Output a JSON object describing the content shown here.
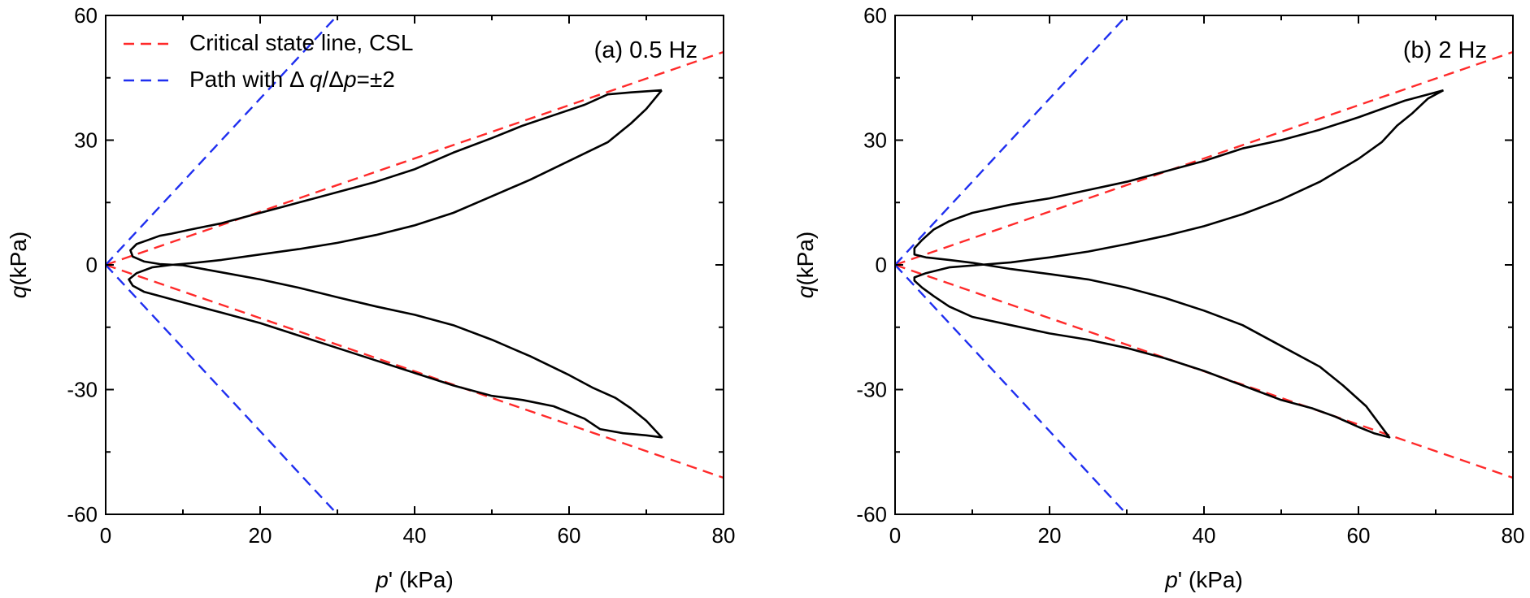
{
  "chart_data": [
    {
      "type": "line",
      "panel_label": "(a) 0.5 Hz",
      "xlabel_italic": "p",
      "xlabel_rest": "' (kPa)",
      "ylabel_italic": "q",
      "ylabel_rest": "(kPa)",
      "xlim": [
        0,
        80
      ],
      "ylim": [
        -60,
        60
      ],
      "xticks": [
        0,
        20,
        40,
        60,
        80
      ],
      "yticks": [
        -60,
        -30,
        0,
        30,
        60
      ],
      "grid": false,
      "legend": {
        "placement": "top-left",
        "entries": [
          {
            "label": "Critical state line, CSL",
            "color": "#ff2a2a"
          },
          {
            "label_parts": [
              "Path with Δ ",
              "q",
              "/Δ",
              "p",
              "=±2"
            ],
            "italic": [
              false,
              true,
              false,
              true,
              false
            ],
            "color": "#1f2ff0"
          }
        ]
      },
      "series": [
        {
          "name": "Critical state line, CSL",
          "style": "dashed",
          "color": "#ff2a2a",
          "x": [
            0,
            80
          ],
          "y": [
            0,
            51.2
          ]
        },
        {
          "name": "Critical state line, CSL",
          "style": "dashed",
          "color": "#ff2a2a",
          "x": [
            0,
            80
          ],
          "y": [
            0,
            -51.2
          ]
        },
        {
          "name": "Path with Δq/Δp=±2",
          "style": "dashed",
          "color": "#1f2ff0",
          "x": [
            0,
            30
          ],
          "y": [
            0,
            60
          ]
        },
        {
          "name": "Path with Δq/Δp=±2",
          "style": "dashed",
          "color": "#1f2ff0",
          "x": [
            0,
            30
          ],
          "y": [
            0,
            -60
          ]
        },
        {
          "name": "stress path",
          "style": "solid",
          "color": "#000000",
          "x": [
            72,
            68,
            65,
            62,
            58,
            54,
            50,
            45,
            40,
            35,
            30,
            25,
            20,
            15,
            11,
            8.5,
            7,
            5.5,
            4,
            3.2,
            3.5,
            5,
            7,
            10,
            15,
            20,
            25,
            30,
            35,
            40,
            45,
            50,
            55,
            60,
            63,
            66,
            68,
            70,
            72,
            70,
            67,
            64,
            62,
            58,
            54,
            50,
            45,
            40,
            35,
            30,
            25,
            20,
            15,
            10,
            7,
            5,
            3.5,
            3,
            4,
            6,
            8.5,
            11,
            15,
            20,
            25,
            30,
            35,
            40,
            45,
            50,
            55,
            60,
            65,
            68,
            70,
            72
          ],
          "y": [
            42,
            41.5,
            41,
            38.5,
            36,
            33.5,
            30.5,
            27,
            23,
            20,
            17.5,
            15,
            12.5,
            10,
            8.5,
            7.5,
            7,
            6,
            5,
            3.5,
            2,
            0.8,
            0.2,
            -0.1,
            -1.8,
            -3.5,
            -5.5,
            -7.8,
            -10,
            -12,
            -14.5,
            -18,
            -22,
            -26.5,
            -29.5,
            -32,
            -34.5,
            -37.5,
            -41.5,
            -41,
            -40.5,
            -39.5,
            -37,
            -34,
            -32.5,
            -31.5,
            -29,
            -26,
            -23,
            -20,
            -17,
            -14,
            -11.5,
            -9,
            -7.5,
            -6.5,
            -5,
            -3.5,
            -2,
            -0.6,
            0,
            0.4,
            1.2,
            2.5,
            3.8,
            5.3,
            7.2,
            9.5,
            12.5,
            16.5,
            20.5,
            25,
            29.5,
            34,
            37.5,
            42
          ]
        }
      ]
    },
    {
      "type": "line",
      "panel_label": "(b) 2 Hz",
      "xlabel_italic": "p",
      "xlabel_rest": "' (kPa)",
      "ylabel_italic": "q",
      "ylabel_rest": "(kPa)",
      "xlim": [
        0,
        80
      ],
      "ylim": [
        -60,
        60
      ],
      "xticks": [
        0,
        20,
        40,
        60,
        80
      ],
      "yticks": [
        -60,
        -30,
        0,
        30,
        60
      ],
      "grid": false,
      "series": [
        {
          "name": "Critical state line, CSL",
          "style": "dashed",
          "color": "#ff2a2a",
          "x": [
            0,
            80
          ],
          "y": [
            0,
            51.2
          ]
        },
        {
          "name": "Critical state line, CSL",
          "style": "dashed",
          "color": "#ff2a2a",
          "x": [
            0,
            80
          ],
          "y": [
            0,
            -51.2
          ]
        },
        {
          "name": "Path with Δq/Δp=±2",
          "style": "dashed",
          "color": "#1f2ff0",
          "x": [
            0,
            30
          ],
          "y": [
            0,
            60
          ]
        },
        {
          "name": "Path with Δq/Δp=±2",
          "style": "dashed",
          "color": "#1f2ff0",
          "x": [
            0,
            30
          ],
          "y": [
            0,
            -60
          ]
        },
        {
          "name": "stress path",
          "style": "solid",
          "color": "#000000",
          "x": [
            71,
            69,
            66,
            63,
            60,
            55,
            50,
            45,
            40,
            35,
            30,
            25,
            20,
            15,
            10,
            7,
            5,
            3.5,
            2.5,
            2.5,
            4,
            7,
            10,
            15,
            20,
            25,
            30,
            35,
            40,
            45,
            50,
            55,
            58,
            61,
            64,
            62,
            60,
            57,
            54,
            50,
            45,
            40,
            35,
            30,
            25,
            20,
            15,
            10,
            7,
            5,
            3.5,
            2.5,
            2.5,
            4,
            7,
            11,
            15,
            20,
            25,
            30,
            35,
            40,
            45,
            50,
            55,
            60,
            63,
            65,
            67,
            69,
            71
          ],
          "y": [
            42,
            41,
            39.5,
            37.5,
            35.5,
            32.5,
            30,
            28,
            25,
            22.5,
            20,
            18,
            16,
            14.5,
            12.5,
            10.5,
            8.5,
            6,
            4,
            2.5,
            1.8,
            1.2,
            0.5,
            -1,
            -2.2,
            -3.5,
            -5.5,
            -8,
            -11,
            -14.5,
            -19.5,
            -24.5,
            -29,
            -34,
            -41.5,
            -40.5,
            -39,
            -36.5,
            -34.5,
            -32.5,
            -29,
            -25.5,
            -22.5,
            -20,
            -18,
            -16.5,
            -14.5,
            -12.5,
            -10,
            -7.5,
            -5.5,
            -3.8,
            -3,
            -2,
            -0.6,
            0,
            0.6,
            1.8,
            3.2,
            5,
            7,
            9.3,
            12.2,
            15.7,
            20,
            25.5,
            29.5,
            33.5,
            36.5,
            40,
            42
          ]
        }
      ]
    }
  ]
}
